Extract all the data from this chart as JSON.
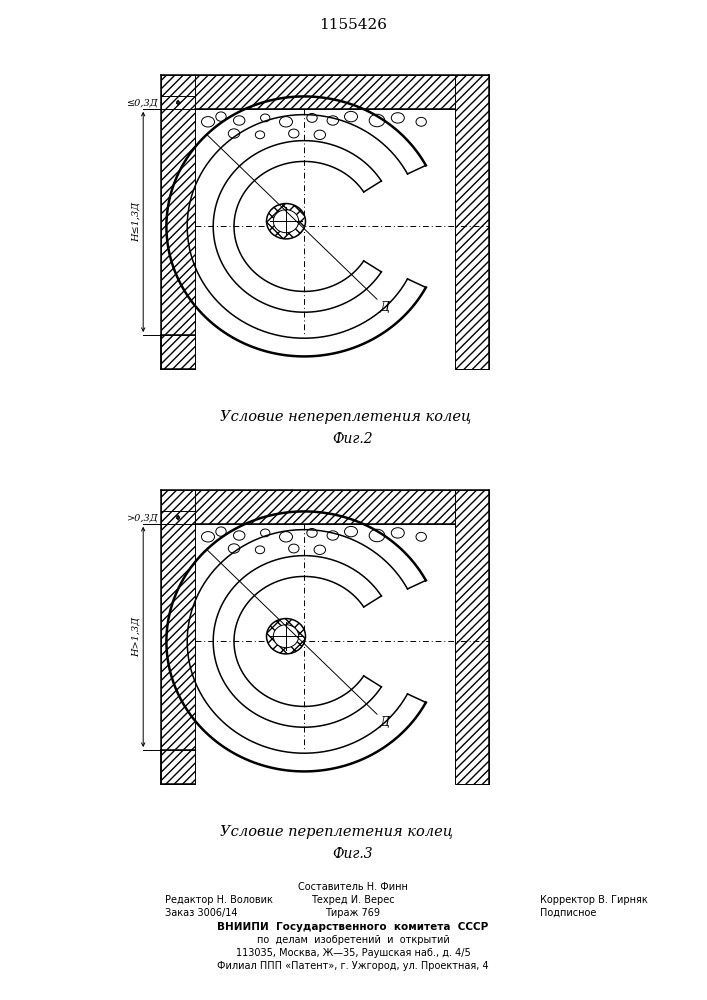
{
  "title": "1155426",
  "fig2_caption": "Условие непереплетения колец",
  "fig2_label": "Фиг.2",
  "fig3_caption": "Условие переплетения колец",
  "fig3_label": "Фиг.3",
  "dim1_fig2": "≤0,3Д",
  "dim2_fig2": "H≤1,3Д",
  "dim1_fig3": ">0,3Д",
  "dim2_fig3": "H>1,3Д",
  "label_d": "Д",
  "footer_line1": "Составитель Н. Финн",
  "footer_line2_left": "Редактор Н. Воловик",
  "footer_line2_mid": "Техред И. Верес",
  "footer_line2_right": "Корректор В. Гирняк",
  "footer_line3_left": "Заказ 3006/14",
  "footer_line3_mid": "Тираж 769",
  "footer_line3_right": "Подписное",
  "footer_line4": "ВНИИПИ  Государственного  комитета  СССР",
  "footer_line5": "по  делам  изобретений  и  открытий",
  "footer_line6": "113035, Москва, Ж—35, Раушская наб., д. 4/5",
  "footer_line7": "Филиал ППП «Патент», г. Ужгород, ул. Проектная, 4",
  "bg_color": "#ffffff",
  "line_color": "#000000"
}
